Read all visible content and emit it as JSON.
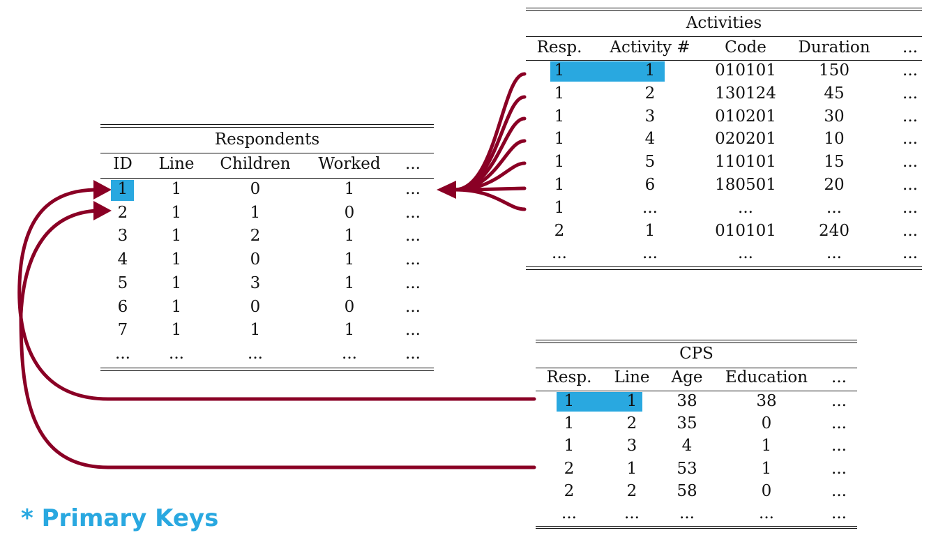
{
  "colors": {
    "primary_key_highlight": "#29a8e0",
    "arrow": "#8a0025"
  },
  "legend": "* Primary Keys",
  "respondents": {
    "title": "Respondents",
    "columns": [
      "ID",
      "Line",
      "Children",
      "Worked",
      "..."
    ],
    "rows": [
      [
        "1",
        "1",
        "0",
        "1",
        "..."
      ],
      [
        "2",
        "1",
        "1",
        "0",
        "..."
      ],
      [
        "3",
        "1",
        "2",
        "1",
        "..."
      ],
      [
        "4",
        "1",
        "0",
        "1",
        "..."
      ],
      [
        "5",
        "1",
        "3",
        "1",
        "..."
      ],
      [
        "6",
        "1",
        "0",
        "0",
        "..."
      ],
      [
        "7",
        "1",
        "1",
        "1",
        "..."
      ],
      [
        "...",
        "...",
        "...",
        "...",
        "..."
      ]
    ],
    "primary_key_columns": [
      0
    ]
  },
  "activities": {
    "title": "Activities",
    "columns": [
      "Resp.",
      "Activity #",
      "Code",
      "Duration",
      "..."
    ],
    "rows": [
      [
        "1",
        "1",
        "010101",
        "150",
        "..."
      ],
      [
        "1",
        "2",
        "130124",
        "45",
        "..."
      ],
      [
        "1",
        "3",
        "010201",
        "30",
        "..."
      ],
      [
        "1",
        "4",
        "020201",
        "10",
        "..."
      ],
      [
        "1",
        "5",
        "110101",
        "15",
        "..."
      ],
      [
        "1",
        "6",
        "180501",
        "20",
        "..."
      ],
      [
        "1",
        "...",
        "...",
        "...",
        "..."
      ],
      [
        "2",
        "1",
        "010101",
        "240",
        "..."
      ],
      [
        "...",
        "...",
        "...",
        "...",
        "..."
      ]
    ],
    "primary_key_columns": [
      0,
      1
    ]
  },
  "cps": {
    "title": "CPS",
    "columns": [
      "Resp.",
      "Line",
      "Age",
      "Education",
      "..."
    ],
    "rows": [
      [
        "1",
        "1",
        "38",
        "38",
        "..."
      ],
      [
        "1",
        "2",
        "35",
        "0",
        "..."
      ],
      [
        "1",
        "3",
        "4",
        "1",
        "..."
      ],
      [
        "2",
        "1",
        "53",
        "1",
        "..."
      ],
      [
        "2",
        "2",
        "58",
        "0",
        "..."
      ],
      [
        "...",
        "...",
        "...",
        "...",
        "..."
      ]
    ],
    "primary_key_columns": [
      0,
      1
    ]
  }
}
